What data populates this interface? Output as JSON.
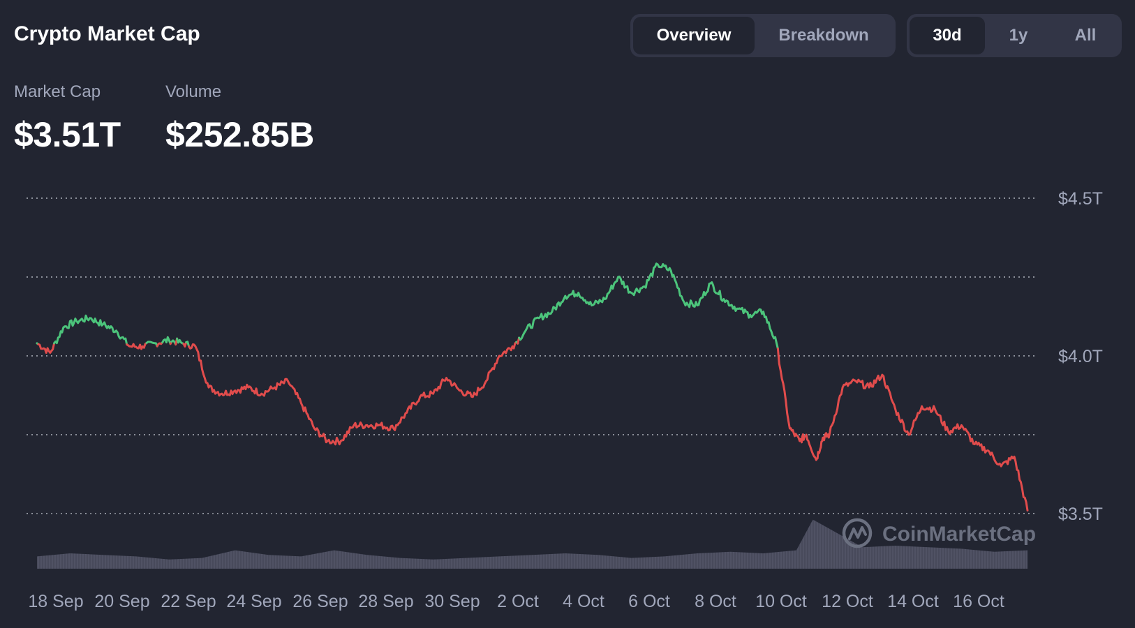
{
  "header": {
    "title": "Crypto Market Cap"
  },
  "view_tabs": [
    {
      "label": "Overview",
      "active": true
    },
    {
      "label": "Breakdown",
      "active": false
    }
  ],
  "range_tabs": [
    {
      "label": "30d",
      "active": true
    },
    {
      "label": "1y",
      "active": false
    },
    {
      "label": "All",
      "active": false
    }
  ],
  "stats": {
    "market_cap": {
      "label": "Market Cap",
      "value": "$3.51T"
    },
    "volume": {
      "label": "Volume",
      "value": "$252.85B"
    }
  },
  "watermark": {
    "text": "CoinMarketCap"
  },
  "colors": {
    "up": "#4cc47b",
    "down": "#e14c4c",
    "grid": "#c8ccd6",
    "volume": "#55586a"
  },
  "chart_data": {
    "type": "line",
    "ylim": [
      3.5,
      4.5
    ],
    "y_ticks": [
      3.5,
      4.0,
      4.5
    ],
    "y_tick_labels": [
      "$3.5T",
      "$4.0T",
      "$4.5T"
    ],
    "gridlines": [
      3.5,
      3.75,
      4.0,
      4.25,
      4.5
    ],
    "baseline": 4.04,
    "x_tick_labels": [
      "18 Sep",
      "20 Sep",
      "22 Sep",
      "24 Sep",
      "26 Sep",
      "28 Sep",
      "30 Sep",
      "2 Oct",
      "4 Oct",
      "6 Oct",
      "8 Oct",
      "10 Oct",
      "12 Oct",
      "14 Oct",
      "16 Oct"
    ],
    "series": [
      {
        "unit": "T USD",
        "x": [
          0,
          0.4,
          0.8,
          1.2,
          1.6,
          2.0,
          2.4,
          2.8,
          3.2,
          3.6,
          4.0,
          4.4,
          4.8,
          5.2,
          5.6,
          6.0,
          6.4,
          6.8,
          7.2,
          7.6,
          8.0,
          8.4,
          8.8,
          9.2,
          9.6,
          10.0,
          10.4,
          10.8,
          11.2,
          11.6,
          12.0,
          12.4,
          12.8,
          13.2,
          13.6,
          14.0,
          14.4,
          14.8,
          15.2,
          15.6,
          16.0,
          16.4,
          16.8,
          17.2,
          17.6,
          18.0,
          18.4,
          18.8,
          19.2,
          19.6,
          20.0,
          20.4,
          20.8,
          21.2,
          21.6,
          22.0,
          22.4,
          22.8,
          23.1,
          23.3,
          23.6,
          23.8,
          24.0,
          24.4,
          24.8,
          25.2,
          25.6,
          26.0,
          26.4,
          26.8,
          27.2,
          27.6,
          28.0,
          28.4,
          28.8,
          29.2,
          29.6,
          30.0
        ],
        "values": [
          4.04,
          4.01,
          4.09,
          4.11,
          4.12,
          4.1,
          4.08,
          4.03,
          4.03,
          4.04,
          4.05,
          4.04,
          4.03,
          3.9,
          3.88,
          3.89,
          3.9,
          3.88,
          3.9,
          3.92,
          3.85,
          3.77,
          3.73,
          3.73,
          3.78,
          3.78,
          3.78,
          3.77,
          3.82,
          3.87,
          3.88,
          3.93,
          3.89,
          3.87,
          3.92,
          4.0,
          4.03,
          4.08,
          4.12,
          4.14,
          4.19,
          4.2,
          4.16,
          4.18,
          4.25,
          4.2,
          4.22,
          4.29,
          4.27,
          4.17,
          4.16,
          4.23,
          4.18,
          4.15,
          4.13,
          4.14,
          4.04,
          3.77,
          3.73,
          3.75,
          3.67,
          3.74,
          3.75,
          3.9,
          3.92,
          3.9,
          3.94,
          3.83,
          3.75,
          3.84,
          3.83,
          3.76,
          3.78,
          3.72,
          3.7,
          3.65,
          3.68,
          3.51
        ]
      },
      {
        "name": "Volume",
        "unit": "relative",
        "x": [
          0,
          1,
          2,
          3,
          4,
          5,
          6,
          7,
          8,
          9,
          10,
          11,
          12,
          13,
          14,
          15,
          16,
          17,
          18,
          19,
          20,
          21,
          22,
          23,
          23.5,
          24,
          25,
          26,
          27,
          28,
          29,
          30
        ],
        "values": [
          0.4,
          0.5,
          0.45,
          0.4,
          0.3,
          0.35,
          0.6,
          0.45,
          0.4,
          0.6,
          0.45,
          0.35,
          0.3,
          0.35,
          0.4,
          0.45,
          0.5,
          0.45,
          0.35,
          0.4,
          0.5,
          0.55,
          0.5,
          0.6,
          1.6,
          1.3,
          0.7,
          0.75,
          0.7,
          0.65,
          0.55,
          0.6
        ]
      }
    ]
  }
}
